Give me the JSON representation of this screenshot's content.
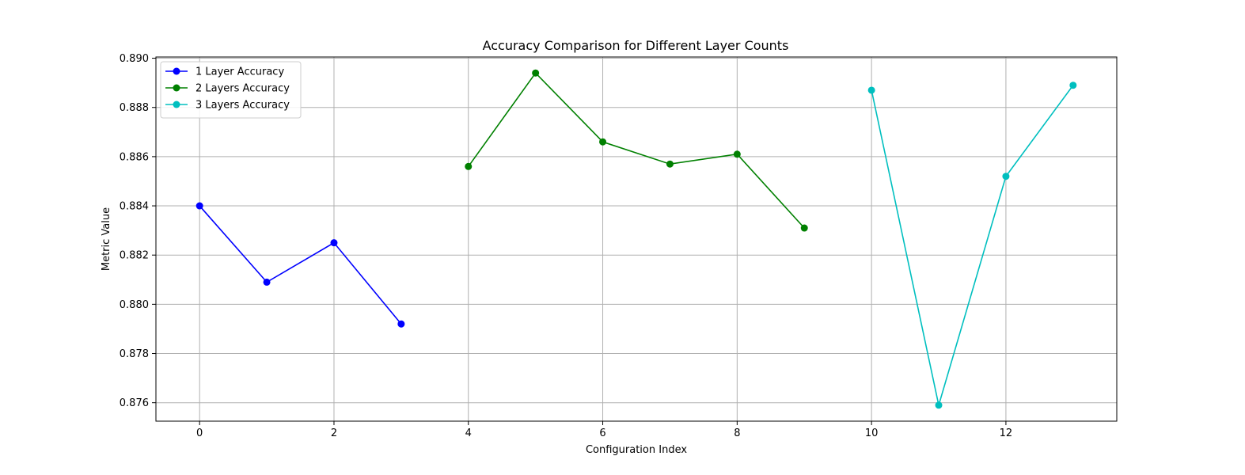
{
  "chart_data": {
    "type": "line",
    "title": "Accuracy Comparison for Different Layer Counts",
    "xlabel": "Configuration Index",
    "ylabel": "Metric Value",
    "xlim": [
      -0.65,
      13.65
    ],
    "ylim": [
      0.87525,
      0.89005
    ],
    "xticks": [
      0,
      2,
      4,
      6,
      8,
      10,
      12
    ],
    "xtick_labels": [
      "0",
      "2",
      "4",
      "6",
      "8",
      "10",
      "12"
    ],
    "yticks": [
      0.876,
      0.878,
      0.88,
      0.882,
      0.884,
      0.886,
      0.888,
      0.89
    ],
    "ytick_labels": [
      "0.876",
      "0.878",
      "0.880",
      "0.882",
      "0.884",
      "0.886",
      "0.888",
      "0.890"
    ],
    "grid": true,
    "legend_position": "top-left",
    "series": [
      {
        "name": "1 Layer Accuracy",
        "color": "#0000ff",
        "x": [
          0,
          1,
          2,
          3
        ],
        "values": [
          0.884,
          0.8809,
          0.8825,
          0.8792
        ]
      },
      {
        "name": "2 Layers Accuracy",
        "color": "#008000",
        "x": [
          4,
          5,
          6,
          7,
          8,
          9
        ],
        "values": [
          0.8856,
          0.8894,
          0.8866,
          0.8857,
          0.8861,
          0.8831
        ]
      },
      {
        "name": "3 Layers Accuracy",
        "color": "#00bfbf",
        "x": [
          10,
          11,
          12,
          13
        ],
        "values": [
          0.8887,
          0.8759,
          0.8852,
          0.8889
        ]
      }
    ]
  }
}
